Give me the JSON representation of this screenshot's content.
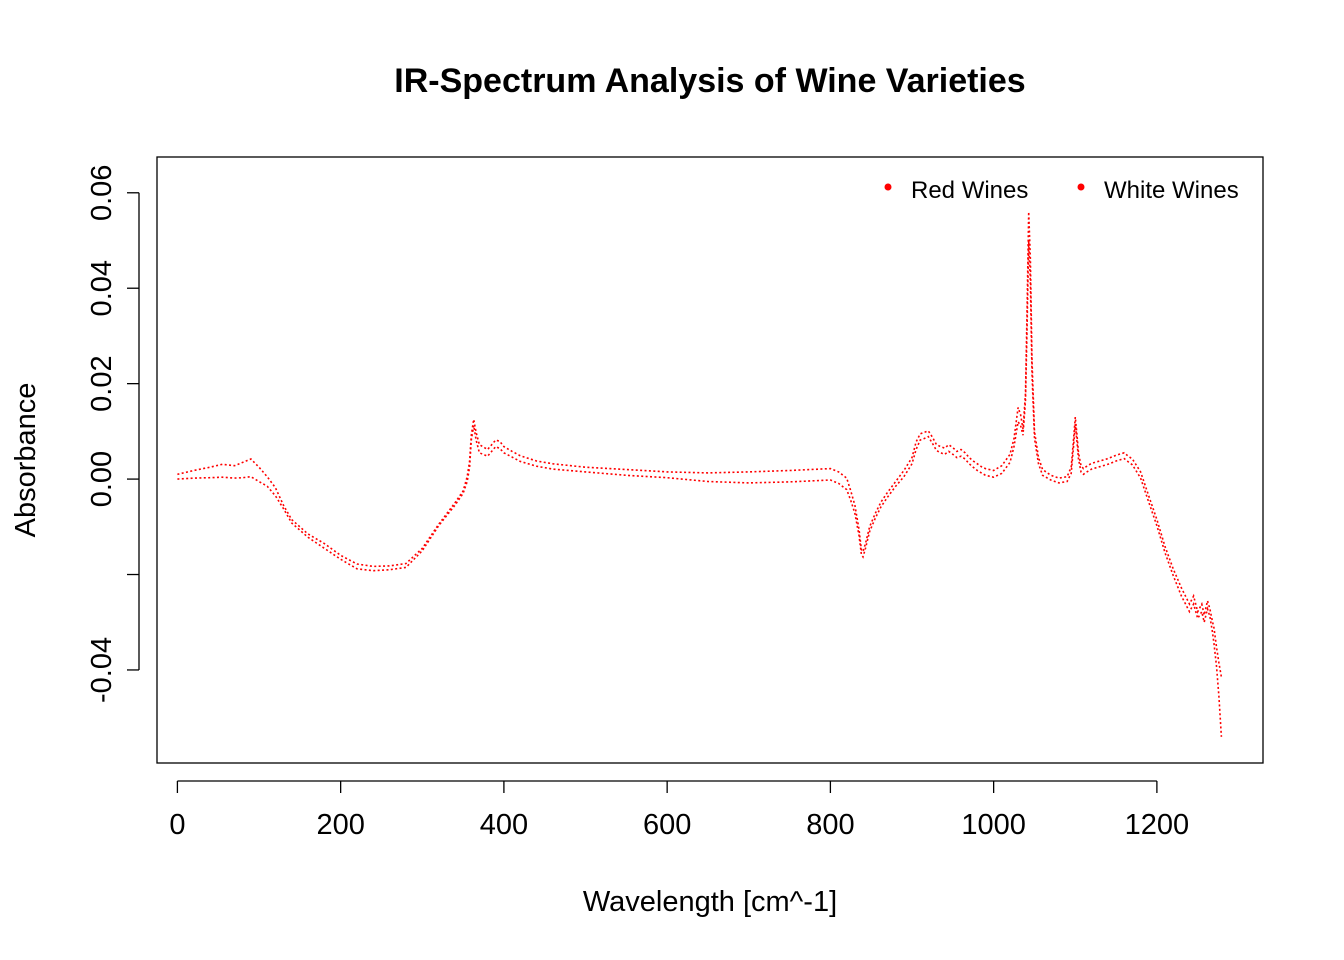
{
  "chart_data": {
    "type": "line",
    "title": "IR-Spectrum Analysis of Wine Varieties",
    "xlabel": "Wavelength [cm^-1]",
    "ylabel": "Absorbance",
    "xlim": [
      -25,
      1330
    ],
    "ylim": [
      -0.0595,
      0.0675
    ],
    "x_ticks": [
      0,
      200,
      400,
      600,
      800,
      1000,
      1200
    ],
    "x_tick_labels": [
      "0",
      "200",
      "400",
      "600",
      "800",
      "1000",
      "1200"
    ],
    "y_ticks": [
      -0.04,
      -0.02,
      0.0,
      0.02,
      0.04,
      0.06
    ],
    "y_tick_labels": [
      "-0.04",
      "",
      "0.00",
      "0.02",
      "0.04",
      "0.06"
    ],
    "grid": false,
    "box": true,
    "legend": {
      "position": "top-right",
      "entries": [
        {
          "label": "Red Wines",
          "color": "#FF0000"
        },
        {
          "label": "White Wines",
          "color": "#FF0000"
        }
      ]
    },
    "series": [
      {
        "color": "#FF0000",
        "x": [
          0,
          20,
          40,
          55,
          70,
          80,
          90,
          100,
          110,
          120,
          130,
          140,
          160,
          180,
          200,
          220,
          240,
          260,
          280,
          300,
          320,
          340,
          350,
          355,
          358,
          360,
          363,
          366,
          370,
          380,
          390,
          395,
          400,
          410,
          420,
          440,
          460,
          500,
          550,
          600,
          650,
          700,
          750,
          800,
          810,
          820,
          825,
          830,
          835,
          838,
          840,
          843,
          848,
          855,
          862,
          870,
          880,
          890,
          900,
          905,
          910,
          915,
          920,
          925,
          930,
          935,
          940,
          945,
          950,
          955,
          960,
          965,
          970,
          975,
          980,
          985,
          990,
          1000,
          1010,
          1020,
          1025,
          1030,
          1033,
          1036,
          1039,
          1041,
          1043,
          1045,
          1047,
          1050,
          1055,
          1060,
          1070,
          1080,
          1090,
          1095,
          1098,
          1100,
          1102,
          1104,
          1107,
          1110,
          1115,
          1120,
          1130,
          1140,
          1150,
          1160,
          1165,
          1170,
          1180,
          1190,
          1200,
          1210,
          1220,
          1230,
          1240,
          1245,
          1250,
          1255,
          1258,
          1262,
          1265,
          1268,
          1270,
          1273,
          1276,
          1279
        ],
        "values": [
          0.001,
          0.0018,
          0.0025,
          0.0031,
          0.0028,
          0.0035,
          0.0042,
          0.0025,
          0.0005,
          -0.0018,
          -0.0055,
          -0.0085,
          -0.0115,
          -0.0135,
          -0.016,
          -0.0178,
          -0.0183,
          -0.0182,
          -0.0177,
          -0.0145,
          -0.0095,
          -0.005,
          -0.0025,
          0.0005,
          0.0038,
          0.0092,
          0.0125,
          0.0098,
          0.0072,
          0.0062,
          0.0082,
          0.0079,
          0.0068,
          0.0058,
          0.0049,
          0.0038,
          0.0032,
          0.0025,
          0.002,
          0.0015,
          0.0013,
          0.0015,
          0.0018,
          0.0022,
          0.0015,
          0.0002,
          -0.0025,
          -0.0055,
          -0.0105,
          -0.0148,
          -0.0152,
          -0.0135,
          -0.01,
          -0.0072,
          -0.0048,
          -0.0028,
          -0.0005,
          0.0018,
          0.0045,
          0.0078,
          0.0095,
          0.0098,
          0.0101,
          0.0088,
          0.0072,
          0.0068,
          0.0065,
          0.0072,
          0.0066,
          0.0058,
          0.0062,
          0.0055,
          0.0045,
          0.0038,
          0.0032,
          0.0026,
          0.0022,
          0.0018,
          0.0028,
          0.0052,
          0.0085,
          0.015,
          0.0135,
          0.0105,
          0.018,
          0.036,
          0.056,
          0.046,
          0.025,
          0.01,
          0.0045,
          0.002,
          0.0008,
          0.0002,
          0.0005,
          0.0025,
          0.0085,
          0.013,
          0.0095,
          0.0055,
          0.0028,
          0.0022,
          0.0028,
          0.0033,
          0.0038,
          0.0043,
          0.005,
          0.0055,
          0.0048,
          0.0042,
          0.0015,
          -0.0035,
          -0.0085,
          -0.0142,
          -0.0188,
          -0.0228,
          -0.0262,
          -0.0245,
          -0.0278,
          -0.0262,
          -0.0285,
          -0.0255,
          -0.0272,
          -0.0298,
          -0.0312,
          -0.0352,
          -0.0385,
          -0.0415
        ]
      },
      {
        "color": "#FF0000",
        "x": [
          0,
          20,
          40,
          55,
          70,
          80,
          90,
          100,
          110,
          120,
          130,
          140,
          160,
          180,
          200,
          220,
          240,
          260,
          280,
          300,
          320,
          340,
          350,
          355,
          358,
          360,
          363,
          366,
          370,
          380,
          390,
          395,
          400,
          410,
          420,
          440,
          460,
          500,
          550,
          600,
          650,
          700,
          750,
          800,
          810,
          820,
          825,
          830,
          835,
          838,
          840,
          843,
          848,
          855,
          862,
          870,
          880,
          890,
          900,
          905,
          910,
          915,
          920,
          925,
          930,
          935,
          940,
          945,
          950,
          955,
          960,
          965,
          970,
          975,
          980,
          985,
          990,
          1000,
          1010,
          1020,
          1025,
          1030,
          1033,
          1036,
          1039,
          1041,
          1043,
          1045,
          1047,
          1050,
          1055,
          1060,
          1070,
          1080,
          1090,
          1095,
          1098,
          1100,
          1102,
          1104,
          1107,
          1110,
          1115,
          1120,
          1130,
          1140,
          1150,
          1160,
          1165,
          1170,
          1180,
          1190,
          1200,
          1210,
          1220,
          1230,
          1240,
          1245,
          1250,
          1255,
          1258,
          1262,
          1265,
          1268,
          1270,
          1273,
          1276,
          1279
        ],
        "values": [
          0.0,
          0.0002,
          0.0003,
          0.0004,
          0.0002,
          0.0003,
          0.0005,
          -0.0005,
          -0.0015,
          -0.0035,
          -0.0062,
          -0.0092,
          -0.0122,
          -0.0145,
          -0.0168,
          -0.0188,
          -0.0192,
          -0.019,
          -0.0185,
          -0.015,
          -0.0098,
          -0.0055,
          -0.003,
          -0.0005,
          0.0025,
          0.0082,
          0.0112,
          0.0082,
          0.0055,
          0.0048,
          0.0068,
          0.0064,
          0.0055,
          0.0046,
          0.0037,
          0.0027,
          0.0021,
          0.0015,
          0.0008,
          0.0003,
          -0.0005,
          -0.0008,
          -0.0006,
          -0.0002,
          -0.0009,
          -0.0022,
          -0.0045,
          -0.0072,
          -0.0118,
          -0.0158,
          -0.0163,
          -0.0145,
          -0.011,
          -0.0082,
          -0.0058,
          -0.0038,
          -0.0015,
          0.0005,
          0.0032,
          0.0062,
          0.0082,
          0.0085,
          0.0089,
          0.0075,
          0.006,
          0.0055,
          0.0052,
          0.0058,
          0.0052,
          0.0045,
          0.0048,
          0.0042,
          0.0032,
          0.0025,
          0.0018,
          0.0013,
          0.0008,
          0.0004,
          0.0012,
          0.0035,
          0.0068,
          0.012,
          0.0112,
          0.0092,
          0.0165,
          0.032,
          0.05,
          0.041,
          0.022,
          0.0085,
          0.0032,
          0.0008,
          -0.0002,
          -0.0008,
          -0.0005,
          0.0012,
          0.007,
          0.0115,
          0.008,
          0.0042,
          0.0015,
          0.001,
          0.0016,
          0.0021,
          0.0026,
          0.0031,
          0.0038,
          0.0043,
          0.0036,
          0.003,
          0.0002,
          -0.0048,
          -0.0098,
          -0.0155,
          -0.0202,
          -0.0245,
          -0.0278,
          -0.0262,
          -0.0292,
          -0.0278,
          -0.03,
          -0.0272,
          -0.0288,
          -0.032,
          -0.0345,
          -0.0392,
          -0.0455,
          -0.054
        ]
      }
    ]
  }
}
